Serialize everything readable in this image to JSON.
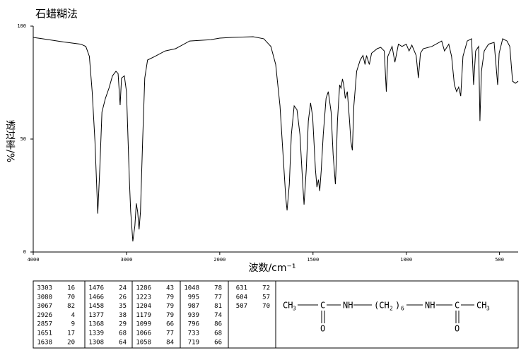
{
  "chart_data": {
    "type": "line",
    "title": "石蜡糊法",
    "xlabel": "波数/cm⁻¹",
    "ylabel": "透过率/%",
    "xlim": [
      4000,
      400
    ],
    "x_scale_change": {
      "at": 2000,
      "factor": 2
    },
    "xticks": [
      4000,
      3000,
      2000,
      1500,
      1000,
      500
    ],
    "ylim": [
      0,
      100
    ],
    "yticks": [
      0,
      50,
      100
    ],
    "color": "#000000",
    "x": [
      4000,
      3902,
      3677,
      3489,
      3436,
      3398,
      3368,
      3338,
      3308,
      3286,
      3263,
      3226,
      3188,
      3150,
      3113,
      3090,
      3068,
      3053,
      3023,
      3000,
      2970,
      2955,
      2932,
      2910,
      2895,
      2880,
      2865,
      2850,
      2827,
      2804,
      2774,
      2699,
      2586,
      2474,
      2323,
      2098,
      2000,
      1935,
      1821,
      1764,
      1726,
      1700,
      1677,
      1658,
      1646,
      1639,
      1627,
      1616,
      1601,
      1586,
      1570,
      1555,
      1548,
      1536,
      1525,
      1513,
      1502,
      1487,
      1479,
      1471,
      1464,
      1456,
      1445,
      1430,
      1418,
      1403,
      1392,
      1380,
      1377,
      1369,
      1357,
      1350,
      1342,
      1335,
      1327,
      1316,
      1304,
      1297,
      1289,
      1281,
      1266,
      1247,
      1232,
      1221,
      1213,
      1198,
      1186,
      1156,
      1137,
      1118,
      1107,
      1099,
      1076,
      1061,
      1042,
      1023,
      1000,
      985,
      970,
      947,
      935,
      924,
      909,
      863,
      810,
      795,
      772,
      757,
      742,
      730,
      719,
      708,
      696,
      673,
      650,
      639,
      628,
      612,
      605,
      597,
      582,
      559,
      529,
      510,
      502,
      483,
      460,
      445,
      430,
      415,
      400
    ],
    "values": [
      95,
      94.4,
      93,
      92,
      91,
      86.6,
      71,
      49,
      17,
      37,
      62,
      68,
      72.5,
      78,
      80,
      79,
      65,
      77,
      78,
      71,
      33,
      18,
      4.7,
      11.6,
      21.5,
      17.8,
      10,
      17.8,
      49,
      77,
      85,
      86.5,
      89,
      90,
      93.4,
      94,
      94.7,
      95,
      95.3,
      94.4,
      91,
      83,
      64.7,
      39.7,
      24,
      18.4,
      30,
      52,
      64.7,
      63,
      52,
      30,
      21,
      36.6,
      58,
      66,
      60,
      36.6,
      28.7,
      32,
      27,
      36,
      52,
      68,
      71,
      62,
      43,
      30,
      36,
      58,
      74,
      72.5,
      76.6,
      74,
      68,
      71,
      58,
      49,
      45,
      64.7,
      80,
      85,
      87,
      83,
      87,
      83,
      88,
      90,
      90.6,
      89,
      71,
      86.6,
      91,
      84,
      92,
      91,
      92,
      89,
      91.6,
      87,
      77,
      88,
      90,
      91,
      93.4,
      89,
      92,
      86.6,
      74,
      71,
      73,
      69,
      86.6,
      93.4,
      94.4,
      74,
      89,
      91,
      58,
      80,
      89,
      92,
      92.8,
      74,
      88,
      94.4,
      93.4,
      91,
      75.6,
      74.7,
      75.6
    ]
  },
  "peak_table": [
    [
      [
        3303,
        16
      ],
      [
        3080,
        70
      ],
      [
        3067,
        82
      ],
      [
        2926,
        4
      ],
      [
        2857,
        9
      ],
      [
        1651,
        17
      ],
      [
        1638,
        20
      ]
    ],
    [
      [
        1476,
        24
      ],
      [
        1466,
        26
      ],
      [
        1458,
        35
      ],
      [
        1377,
        38
      ],
      [
        1368,
        29
      ],
      [
        1339,
        68
      ],
      [
        1308,
        64
      ]
    ],
    [
      [
        1286,
        43
      ],
      [
        1223,
        79
      ],
      [
        1204,
        79
      ],
      [
        1179,
        79
      ],
      [
        1099,
        66
      ],
      [
        1066,
        77
      ],
      [
        1058,
        84
      ]
    ],
    [
      [
        1048,
        78
      ],
      [
        995,
        77
      ],
      [
        987,
        81
      ],
      [
        939,
        74
      ],
      [
        796,
        86
      ],
      [
        733,
        68
      ],
      [
        719,
        66
      ]
    ],
    [
      [
        631,
        72
      ],
      [
        604,
        57
      ],
      [
        507,
        70
      ]
    ]
  ],
  "structure": {
    "left_methyl": [
      "CH",
      "3"
    ],
    "carbonyl_left": "C",
    "oxygen_left": "O",
    "amine_left": "NH",
    "chain": [
      "(CH",
      "2",
      ")",
      "6"
    ],
    "amine_right": "NH",
    "carbonyl_right": "C",
    "oxygen_right": "O",
    "right_methyl": [
      "CH",
      "3"
    ]
  }
}
